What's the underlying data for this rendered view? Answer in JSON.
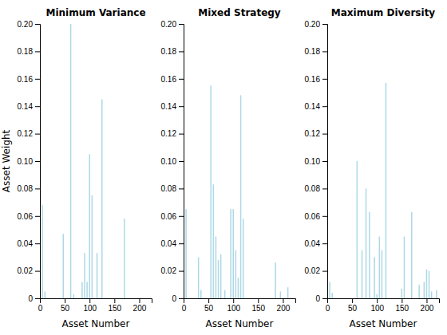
{
  "chart_data": [
    {
      "type": "bar",
      "title": "Minimum Variance",
      "xlabel": "Asset Number",
      "ylabel": "Asset Weight",
      "color": "#add8e6",
      "x": [
        5,
        10,
        47,
        62,
        68,
        85,
        90,
        95,
        100,
        105,
        115,
        125,
        170
      ],
      "values": [
        0.068,
        0.005,
        0.047,
        0.2,
        0.003,
        0.012,
        0.033,
        0.012,
        0.105,
        0.075,
        0.033,
        0.145,
        0.058
      ],
      "xlim": [
        0,
        225
      ],
      "ylim": [
        0,
        0.2
      ],
      "xticks": [
        0,
        50,
        100,
        150,
        200
      ],
      "yticks": [
        0,
        0.02,
        0.04,
        0.06,
        0.08,
        {
          "value": 0.1,
          "label": "0.10"
        },
        0.12,
        0.14,
        0.16,
        0.18,
        {
          "value": 0.2,
          "label": "0.20"
        }
      ]
    },
    {
      "type": "bar",
      "title": "Mixed Strategy",
      "xlabel": "Asset Number",
      "color": "#add8e6",
      "x": [
        5,
        30,
        35,
        55,
        60,
        65,
        70,
        75,
        83,
        95,
        100,
        105,
        110,
        115,
        120,
        185,
        195,
        210
      ],
      "values": [
        0.065,
        0.03,
        0.006,
        0.155,
        0.083,
        0.045,
        0.028,
        0.032,
        0.006,
        0.065,
        0.065,
        0.035,
        0.015,
        0.148,
        0.058,
        0.026,
        0.005,
        0.008
      ],
      "xlim": [
        0,
        225
      ],
      "ylim": [
        0,
        0.2
      ],
      "xticks": [
        0,
        50,
        100,
        150,
        200
      ],
      "yticks": [
        0,
        0.02,
        0.04,
        0.06,
        0.08,
        {
          "value": 0.1,
          "label": "0.10"
        },
        0.12,
        0.14,
        0.16,
        0.18,
        {
          "value": 0.2,
          "label": "0.20"
        }
      ]
    },
    {
      "type": "bar",
      "title": "Maximum Diversity",
      "xlabel": "Asset Number",
      "color": "#add8e6",
      "x": [
        5,
        10,
        60,
        70,
        78,
        85,
        95,
        100,
        105,
        110,
        118,
        150,
        155,
        170,
        185,
        195,
        200,
        205,
        210,
        220
      ],
      "values": [
        0.012,
        0.004,
        0.1,
        0.035,
        0.08,
        0.063,
        0.03,
        0.003,
        0.045,
        0.035,
        0.157,
        0.007,
        0.045,
        0.063,
        0.01,
        0.012,
        0.021,
        0.02,
        0.005,
        0.006
      ],
      "xlim": [
        0,
        225
      ],
      "ylim": [
        0,
        0.2
      ],
      "xticks": [
        0,
        50,
        100,
        150,
        200
      ],
      "yticks": [
        0,
        0.02,
        0.04,
        0.06,
        0.08,
        {
          "value": 0.1,
          "label": "0.10"
        },
        0.12,
        0.14,
        0.16,
        0.18,
        {
          "value": 0.2,
          "label": "0.20"
        }
      ]
    }
  ]
}
